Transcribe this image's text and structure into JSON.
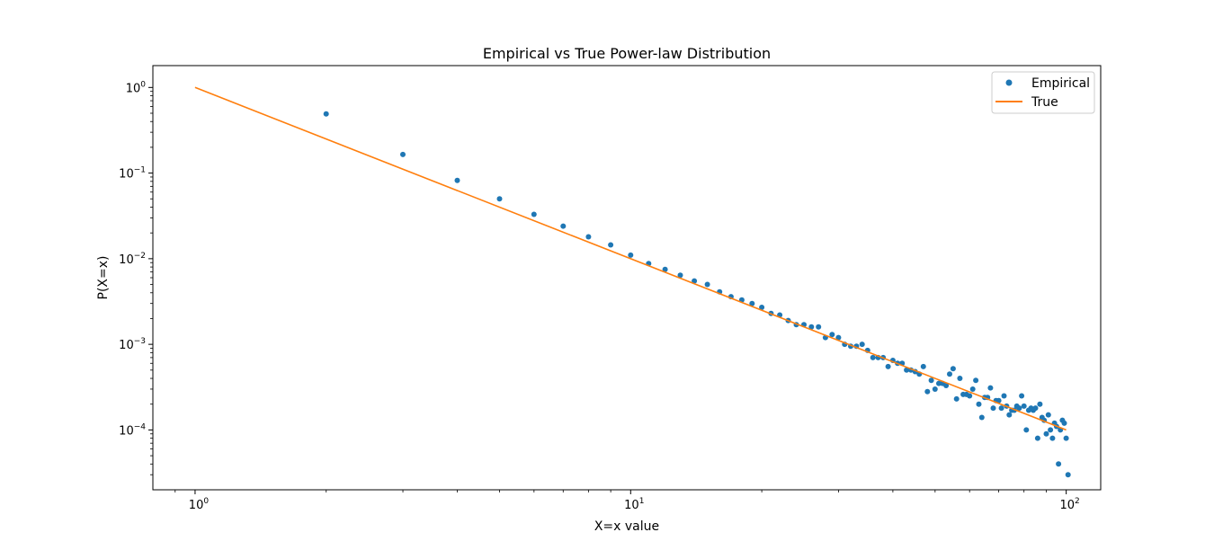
{
  "chart_data": {
    "type": "scatter",
    "title": "Empirical vs True Power-law Distribution",
    "xlabel": "X=x value",
    "ylabel": "P(X=x)",
    "xscale": "log",
    "yscale": "log",
    "xlim": [
      0.8,
      120
    ],
    "ylim": [
      2e-05,
      1.8
    ],
    "grid": false,
    "legend_position": "upper right",
    "x_ticks": [
      {
        "value": 1,
        "base": "10",
        "exp": "0"
      },
      {
        "value": 10,
        "base": "10",
        "exp": "1"
      },
      {
        "value": 100,
        "base": "10",
        "exp": "2"
      }
    ],
    "y_ticks": [
      {
        "value": 1,
        "base": "10",
        "exp": "0"
      },
      {
        "value": 0.1,
        "base": "10",
        "exp": "−1"
      },
      {
        "value": 0.01,
        "base": "10",
        "exp": "−2"
      },
      {
        "value": 0.001,
        "base": "10",
        "exp": "−3"
      },
      {
        "value": 0.0001,
        "base": "10",
        "exp": "−4"
      }
    ],
    "series": [
      {
        "name": "Empirical",
        "kind": "points",
        "color": "#1f77b4",
        "points": [
          [
            2,
            0.49
          ],
          [
            3,
            0.165
          ],
          [
            4,
            0.082
          ],
          [
            5,
            0.05
          ],
          [
            6,
            0.033
          ],
          [
            7,
            0.024
          ],
          [
            8,
            0.018
          ],
          [
            9,
            0.0145
          ],
          [
            10,
            0.011
          ],
          [
            11,
            0.0088
          ],
          [
            12,
            0.0075
          ],
          [
            13,
            0.0064
          ],
          [
            14,
            0.0055
          ],
          [
            15,
            0.005
          ],
          [
            16,
            0.0041
          ],
          [
            17,
            0.0036
          ],
          [
            18,
            0.0033
          ],
          [
            19,
            0.003
          ],
          [
            20,
            0.0027
          ],
          [
            21,
            0.0023
          ],
          [
            22,
            0.0022
          ],
          [
            23,
            0.0019
          ],
          [
            24,
            0.0017
          ],
          [
            25,
            0.0017
          ],
          [
            26,
            0.0016
          ],
          [
            27,
            0.0016
          ],
          [
            28,
            0.0012
          ],
          [
            29,
            0.0013
          ],
          [
            30,
            0.0012
          ],
          [
            31,
            0.001
          ],
          [
            32,
            0.00095
          ],
          [
            33,
            0.00095
          ],
          [
            34,
            0.001
          ],
          [
            35,
            0.00085
          ],
          [
            36,
            0.0007
          ],
          [
            37,
            0.0007
          ],
          [
            38,
            0.0007
          ],
          [
            39,
            0.00055
          ],
          [
            40,
            0.00065
          ],
          [
            41,
            0.0006
          ],
          [
            42,
            0.0006
          ],
          [
            43,
            0.0005
          ],
          [
            44,
            0.0005
          ],
          [
            45,
            0.00048
          ],
          [
            46,
            0.00045
          ],
          [
            47,
            0.00055
          ],
          [
            48,
            0.00028
          ],
          [
            49,
            0.00038
          ],
          [
            50,
            0.0003
          ],
          [
            51,
            0.00035
          ],
          [
            52,
            0.00035
          ],
          [
            53,
            0.00033
          ],
          [
            54,
            0.00045
          ],
          [
            55,
            0.00052
          ],
          [
            56,
            0.00023
          ],
          [
            57,
            0.0004
          ],
          [
            58,
            0.00026
          ],
          [
            59,
            0.00026
          ],
          [
            60,
            0.00025
          ],
          [
            61,
            0.0003
          ],
          [
            62,
            0.00038
          ],
          [
            63,
            0.0002
          ],
          [
            64,
            0.00014
          ],
          [
            65,
            0.00024
          ],
          [
            66,
            0.00024
          ],
          [
            67,
            0.00031
          ],
          [
            68,
            0.00018
          ],
          [
            69,
            0.00022
          ],
          [
            70,
            0.00022
          ],
          [
            71,
            0.00018
          ],
          [
            72,
            0.00025
          ],
          [
            73,
            0.00019
          ],
          [
            74,
            0.00015
          ],
          [
            75,
            0.00017
          ],
          [
            76,
            0.00017
          ],
          [
            77,
            0.00019
          ],
          [
            78,
            0.00018
          ],
          [
            79,
            0.00025
          ],
          [
            80,
            0.00019
          ],
          [
            81,
            0.0001
          ],
          [
            82,
            0.00017
          ],
          [
            83,
            0.00018
          ],
          [
            84,
            0.00017
          ],
          [
            85,
            0.00018
          ],
          [
            86,
            8e-05
          ],
          [
            87,
            0.0002
          ],
          [
            88,
            0.00014
          ],
          [
            89,
            0.00013
          ],
          [
            90,
            9e-05
          ],
          [
            91,
            0.00015
          ],
          [
            92,
            0.0001
          ],
          [
            93,
            8e-05
          ],
          [
            94,
            0.00012
          ],
          [
            95,
            0.00011
          ],
          [
            96,
            4e-05
          ],
          [
            97,
            0.0001
          ],
          [
            98,
            0.00013
          ],
          [
            99,
            0.00012
          ],
          [
            100,
            8e-05
          ],
          [
            101,
            3e-05
          ]
        ]
      },
      {
        "name": "True",
        "kind": "line",
        "color": "#ff7f0e",
        "points": [
          [
            1,
            1
          ],
          [
            100,
            0.0001
          ]
        ]
      }
    ]
  }
}
